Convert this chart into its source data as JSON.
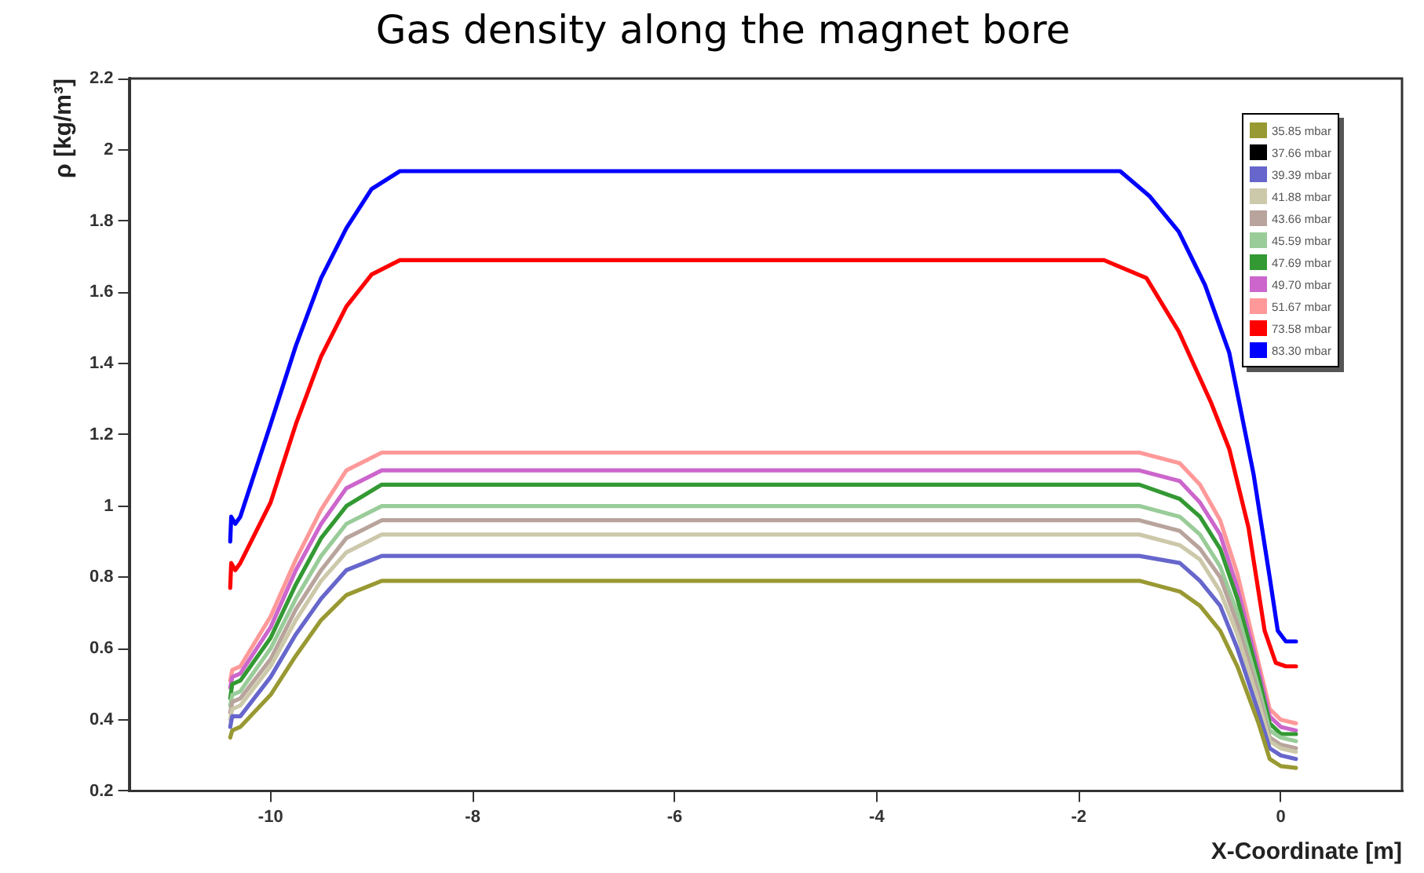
{
  "chart_data": {
    "type": "line",
    "title": "Gas density along the magnet bore",
    "xlabel": "X-Coordinate [m]",
    "ylabel": "ρ [kg/m³]",
    "xlim": [
      -11.4,
      1.2
    ],
    "xticks": [
      -10,
      -8,
      -6,
      -4,
      -2,
      0
    ],
    "ylim": [
      0.2,
      2.2
    ],
    "yticks": [
      0.2,
      0.4,
      0.6,
      0.8,
      1,
      1.2,
      1.4,
      1.6,
      1.8,
      2,
      2.2
    ],
    "legend": "top right",
    "grid": false,
    "series": [
      {
        "name": "35.85 mbar",
        "color": "#999933",
        "x": [
          -10.4,
          -10.38,
          -10.3,
          -10,
          -9.75,
          -9.5,
          -9.25,
          -8.9,
          -1.4,
          -1.0,
          -0.8,
          -0.6,
          -0.43,
          -0.22,
          -0.11,
          0,
          0.15
        ],
        "values": [
          0.35,
          0.37,
          0.38,
          0.47,
          0.58,
          0.68,
          0.75,
          0.79,
          0.79,
          0.76,
          0.72,
          0.65,
          0.55,
          0.39,
          0.29,
          0.27,
          0.265
        ]
      },
      {
        "name": "37.66 mbar",
        "color": "#000000"
      },
      {
        "name": "39.39 mbar",
        "color": "#6666cc",
        "x": [
          -10.4,
          -10.38,
          -10.3,
          -10,
          -9.75,
          -9.5,
          -9.25,
          -8.9,
          -1.4,
          -1.0,
          -0.8,
          -0.6,
          -0.43,
          -0.22,
          -0.11,
          0,
          0.15
        ],
        "values": [
          0.38,
          0.41,
          0.41,
          0.52,
          0.64,
          0.74,
          0.82,
          0.86,
          0.86,
          0.84,
          0.79,
          0.72,
          0.6,
          0.42,
          0.32,
          0.3,
          0.29
        ]
      },
      {
        "name": "41.88 mbar",
        "color": "#ccc8aa",
        "x": [
          -10.4,
          -10.38,
          -10.3,
          -10,
          -9.75,
          -9.5,
          -9.25,
          -8.9,
          -1.4,
          -1.0,
          -0.8,
          -0.6,
          -0.43,
          -0.22,
          -0.11,
          0,
          0.15
        ],
        "values": [
          0.4,
          0.43,
          0.44,
          0.55,
          0.68,
          0.79,
          0.87,
          0.92,
          0.92,
          0.89,
          0.85,
          0.76,
          0.64,
          0.45,
          0.34,
          0.32,
          0.31
        ]
      },
      {
        "name": "43.66 mbar",
        "color": "#b8a49c",
        "x": [
          -10.4,
          -10.38,
          -10.3,
          -10,
          -9.75,
          -9.5,
          -9.25,
          -8.9,
          -1.4,
          -1.0,
          -0.8,
          -0.6,
          -0.43,
          -0.22,
          -0.11,
          0,
          0.15
        ],
        "values": [
          0.42,
          0.45,
          0.46,
          0.57,
          0.71,
          0.82,
          0.91,
          0.96,
          0.96,
          0.93,
          0.88,
          0.8,
          0.67,
          0.47,
          0.35,
          0.33,
          0.32
        ]
      },
      {
        "name": "45.59 mbar",
        "color": "#99cc99",
        "x": [
          -10.4,
          -10.38,
          -10.3,
          -10,
          -9.75,
          -9.5,
          -9.25,
          -8.9,
          -1.4,
          -1.0,
          -0.8,
          -0.6,
          -0.43,
          -0.22,
          -0.11,
          0,
          0.15
        ],
        "values": [
          0.44,
          0.47,
          0.48,
          0.6,
          0.74,
          0.86,
          0.95,
          1.0,
          1.0,
          0.97,
          0.92,
          0.83,
          0.7,
          0.49,
          0.37,
          0.35,
          0.34
        ]
      },
      {
        "name": "47.69 mbar",
        "color": "#339933",
        "x": [
          -10.4,
          -10.38,
          -10.3,
          -10,
          -9.75,
          -9.5,
          -9.25,
          -8.9,
          -1.4,
          -1.0,
          -0.8,
          -0.6,
          -0.43,
          -0.22,
          -0.11,
          0,
          0.15
        ],
        "values": [
          0.46,
          0.5,
          0.51,
          0.63,
          0.78,
          0.91,
          1.0,
          1.06,
          1.06,
          1.02,
          0.97,
          0.88,
          0.74,
          0.52,
          0.39,
          0.36,
          0.36
        ]
      },
      {
        "name": "49.70 mbar",
        "color": "#cc66cc",
        "x": [
          -10.4,
          -10.38,
          -10.3,
          -10,
          -9.75,
          -9.5,
          -9.25,
          -8.9,
          -1.4,
          -1.0,
          -0.8,
          -0.6,
          -0.43,
          -0.22,
          -0.11,
          0,
          0.15
        ],
        "values": [
          0.49,
          0.52,
          0.53,
          0.66,
          0.82,
          0.95,
          1.05,
          1.1,
          1.1,
          1.07,
          1.01,
          0.92,
          0.77,
          0.54,
          0.41,
          0.38,
          0.37
        ]
      },
      {
        "name": "51.67 mbar",
        "color": "#ff9999",
        "x": [
          -10.4,
          -10.38,
          -10.3,
          -10,
          -9.75,
          -9.5,
          -9.25,
          -8.9,
          -1.4,
          -1.0,
          -0.8,
          -0.6,
          -0.43,
          -0.22,
          -0.11,
          0,
          0.15
        ],
        "values": [
          0.51,
          0.54,
          0.55,
          0.69,
          0.85,
          0.99,
          1.1,
          1.15,
          1.15,
          1.12,
          1.06,
          0.96,
          0.81,
          0.56,
          0.43,
          0.4,
          0.39
        ]
      },
      {
        "name": "73.58 mbar",
        "color": "#ff0000",
        "x": [
          -10.4,
          -10.39,
          -10.35,
          -10.3,
          -10,
          -9.75,
          -9.5,
          -9.25,
          -9,
          -8.72,
          -1.75,
          -1.33,
          -1.01,
          -0.69,
          -0.51,
          -0.32,
          -0.16,
          -0.05,
          0.05,
          0.15
        ],
        "values": [
          0.77,
          0.84,
          0.82,
          0.84,
          1.01,
          1.23,
          1.42,
          1.56,
          1.65,
          1.69,
          1.69,
          1.64,
          1.49,
          1.29,
          1.16,
          0.94,
          0.65,
          0.56,
          0.55,
          0.55
        ]
      },
      {
        "name": "83.30 mbar",
        "color": "#0000ff",
        "x": [
          -10.4,
          -10.39,
          -10.35,
          -10.3,
          -10,
          -9.75,
          -9.5,
          -9.25,
          -9,
          -8.72,
          -1.59,
          -1.3,
          -1.01,
          -0.75,
          -0.51,
          -0.27,
          -0.11,
          -0.03,
          0.05,
          0.15
        ],
        "values": [
          0.9,
          0.97,
          0.95,
          0.97,
          1.23,
          1.45,
          1.64,
          1.78,
          1.89,
          1.94,
          1.94,
          1.87,
          1.77,
          1.62,
          1.43,
          1.09,
          0.8,
          0.65,
          0.62,
          0.62
        ]
      }
    ]
  }
}
